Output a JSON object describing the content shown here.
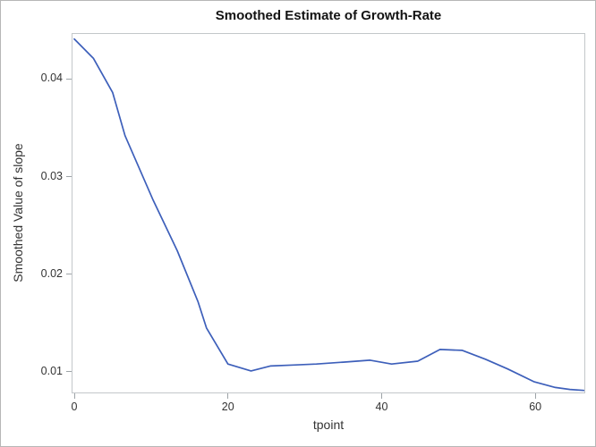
{
  "window": {
    "background": "#ffffff",
    "border_color": "#b7b7b7"
  },
  "colors": {
    "series_line": "#3D5FBA",
    "plot_frame": "#c3c7ca",
    "tick_mark": "#9da3a7",
    "tick_text": "#333333",
    "title_text": "#131313"
  },
  "chart_data": {
    "type": "line",
    "title": "Smoothed Estimate of Growth-Rate",
    "xlabel": "tpoint",
    "ylabel": "Smoothed Value of slope",
    "xlim": [
      -0.35,
      66.5
    ],
    "ylim": [
      0.0078,
      0.0447
    ],
    "x_ticks": [
      0,
      20,
      40,
      60
    ],
    "y_ticks": [
      0.01,
      0.02,
      0.03,
      0.04
    ],
    "y_tick_labels": [
      "0.01",
      "0.02",
      "0.03",
      "0.04"
    ],
    "grid": false,
    "legend": "none",
    "series": [
      {
        "name": "smoothed-growth-rate",
        "x": [
          0,
          2.5,
          5,
          6.6,
          10.2,
          13.4,
          16.1,
          17.2,
          20,
          23,
          25.5,
          28.5,
          31.5,
          35,
          38.5,
          41.3,
          44.7,
          47.6,
          50.5,
          53.5,
          56.4,
          59.8,
          62.6,
          64.5,
          66.3
        ],
        "y": [
          0.0441,
          0.0421,
          0.0386,
          0.0342,
          0.0277,
          0.0224,
          0.0172,
          0.0145,
          0.0108,
          0.0101,
          0.0106,
          0.0107,
          0.0108,
          0.011,
          0.0112,
          0.0108,
          0.0111,
          0.0123,
          0.0122,
          0.0113,
          0.0103,
          0.009,
          0.0084,
          0.0082,
          0.0081
        ]
      }
    ]
  }
}
